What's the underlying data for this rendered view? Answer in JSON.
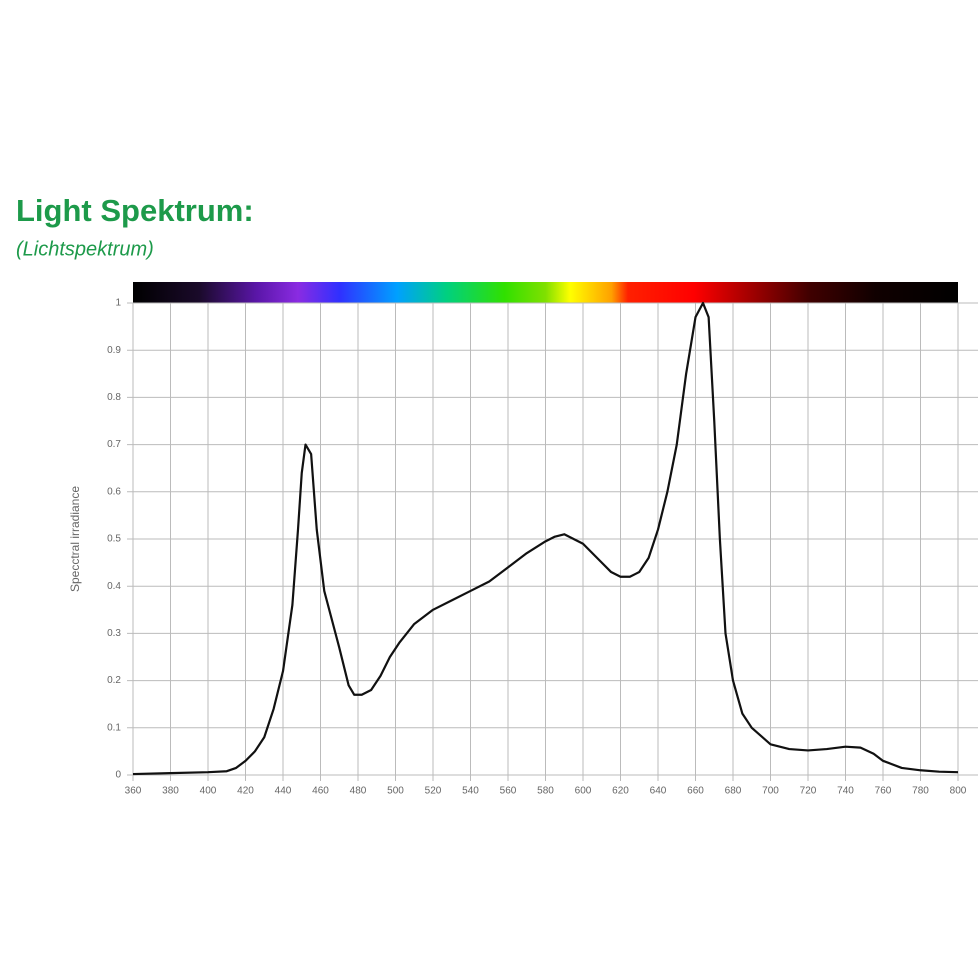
{
  "chart_data": {
    "type": "line",
    "title": "Light Spektrum:",
    "subtitle": "(Lichtspektrum)",
    "y_label": "Specctral irradiance",
    "x": [
      360,
      380,
      400,
      410,
      415,
      420,
      425,
      430,
      435,
      440,
      445,
      448,
      450,
      452,
      455,
      458,
      462,
      466,
      470,
      475,
      478,
      482,
      487,
      492,
      497,
      502,
      510,
      520,
      530,
      540,
      550,
      560,
      570,
      580,
      585,
      590,
      600,
      610,
      615,
      620,
      625,
      630,
      635,
      640,
      645,
      650,
      655,
      660,
      664,
      667,
      670,
      673,
      676,
      680,
      685,
      690,
      700,
      710,
      720,
      730,
      740,
      748,
      755,
      760,
      770,
      780,
      790,
      800
    ],
    "series": [
      {
        "name": "Spectral irradiance",
        "color": "#111111",
        "values": [
          0.002,
          0.004,
          0.006,
          0.008,
          0.015,
          0.03,
          0.05,
          0.08,
          0.14,
          0.22,
          0.36,
          0.52,
          0.64,
          0.7,
          0.68,
          0.52,
          0.39,
          0.33,
          0.27,
          0.19,
          0.17,
          0.17,
          0.18,
          0.21,
          0.25,
          0.28,
          0.32,
          0.35,
          0.37,
          0.39,
          0.41,
          0.44,
          0.47,
          0.495,
          0.505,
          0.51,
          0.49,
          0.45,
          0.43,
          0.42,
          0.42,
          0.43,
          0.46,
          0.52,
          0.6,
          0.7,
          0.85,
          0.97,
          1.0,
          0.97,
          0.75,
          0.5,
          0.3,
          0.2,
          0.13,
          0.1,
          0.065,
          0.055,
          0.052,
          0.055,
          0.06,
          0.058,
          0.045,
          0.03,
          0.015,
          0.01,
          0.007,
          0.006
        ]
      }
    ],
    "xlim": [
      360,
      800
    ],
    "ylim": [
      0,
      1
    ],
    "xticks": [
      360,
      380,
      400,
      420,
      440,
      460,
      480,
      500,
      520,
      540,
      560,
      580,
      600,
      620,
      640,
      660,
      680,
      700,
      720,
      740,
      760,
      780,
      800
    ],
    "yticks": [
      0,
      0.1,
      0.2,
      0.3,
      0.4,
      0.5,
      0.6,
      0.7,
      0.8,
      0.9,
      1
    ],
    "grid": true
  }
}
